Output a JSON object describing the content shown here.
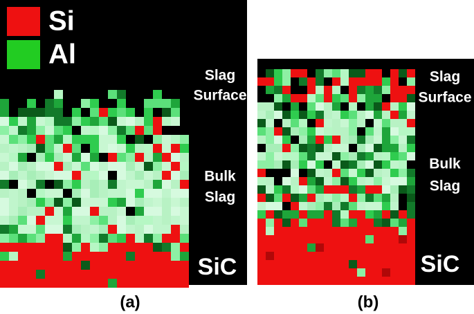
{
  "panels": [
    {
      "caption": "(a)",
      "legend": [
        {
          "label": "Si",
          "color": "#ee1111"
        },
        {
          "label": "Al",
          "color": "#22cc22"
        }
      ],
      "labels": [
        [
          "Slag",
          "Surface"
        ],
        [
          "Bulk",
          "Slag"
        ],
        [
          "SiC"
        ]
      ]
    },
    {
      "caption": "(b)",
      "labels": [
        [
          "Slag",
          "Surface"
        ],
        [
          "Bulk",
          "Slag"
        ],
        [
          "SiC"
        ]
      ]
    }
  ]
}
